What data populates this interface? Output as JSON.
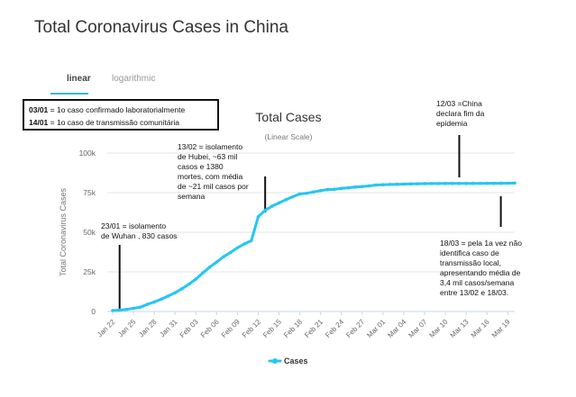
{
  "page_title": "Total Coronavirus Cases in China",
  "tabs": [
    {
      "label": "linear",
      "active": true
    },
    {
      "label": "logarithmic",
      "active": false
    }
  ],
  "info_box": {
    "line1_date": "03/01",
    "line1_text": " = 1o caso confirmado laboratorialmente",
    "line2_date": "14/01",
    "line2_text": " = 1o caso de transmissão comunitária"
  },
  "annotations": {
    "wuhan": "23/01 = isolamento\nde Wuhan , 830 casos",
    "hubei": "13/02 = isolamento\nde Hubei, ~63 mil\ncasos e 1380\nmortes, com média\nde ~21 mil casos por\nsemana",
    "end": "12/03 =China\ndeclara fim da\nepidemia",
    "local": "18/03 = pela 1a vez não\nidentifica caso de\ntransmissão local,\napresentando média de\n3,4 mil casos/semana\nentre 13/02 e 18/03."
  },
  "colors": {
    "series": "#26c6f2",
    "grid": "#e6e6e6",
    "axis_text": "#666666"
  },
  "chart_data": {
    "type": "line",
    "title": "Total Cases",
    "subtitle": "(Linear Scale)",
    "ylabel": "Total Coronavirus Cases",
    "xlabel": "",
    "ylim": [
      0,
      100000
    ],
    "yticks": [
      0,
      25000,
      50000,
      75000,
      100000
    ],
    "ytick_labels": [
      "0",
      "25k",
      "50k",
      "75k",
      "100k"
    ],
    "xtick_labels": [
      "Jan 22",
      "Jan 25",
      "Jan 28",
      "Jan 31",
      "Feb 03",
      "Feb 06",
      "Feb 09",
      "Feb 12",
      "Feb 15",
      "Feb 18",
      "Feb 21",
      "Feb 24",
      "Feb 27",
      "Mar 01",
      "Mar 04",
      "Mar 07",
      "Mar 10",
      "Mar 13",
      "Mar 16",
      "Mar 19"
    ],
    "legend_position": "bottom-center",
    "grid": true,
    "series": [
      {
        "name": "Cases",
        "x": [
          "Jan 22",
          "Jan 23",
          "Jan 24",
          "Jan 25",
          "Jan 26",
          "Jan 27",
          "Jan 28",
          "Jan 29",
          "Jan 30",
          "Jan 31",
          "Feb 01",
          "Feb 02",
          "Feb 03",
          "Feb 04",
          "Feb 05",
          "Feb 06",
          "Feb 07",
          "Feb 08",
          "Feb 09",
          "Feb 10",
          "Feb 11",
          "Feb 12",
          "Feb 13",
          "Feb 14",
          "Feb 15",
          "Feb 16",
          "Feb 17",
          "Feb 18",
          "Feb 19",
          "Feb 20",
          "Feb 21",
          "Feb 22",
          "Feb 23",
          "Feb 24",
          "Feb 25",
          "Feb 26",
          "Feb 27",
          "Feb 28",
          "Feb 29",
          "Mar 01",
          "Mar 02",
          "Mar 03",
          "Mar 04",
          "Mar 05",
          "Mar 06",
          "Mar 07",
          "Mar 08",
          "Mar 09",
          "Mar 10",
          "Mar 11",
          "Mar 12",
          "Mar 13",
          "Mar 14",
          "Mar 15",
          "Mar 16",
          "Mar 17",
          "Mar 18",
          "Mar 19",
          "Mar 20"
        ],
        "values": [
          571,
          830,
          1287,
          1975,
          2744,
          4515,
          5974,
          7711,
          9692,
          11791,
          14380,
          17205,
          20438,
          24324,
          28018,
          31161,
          34546,
          37198,
          40171,
          42638,
          44653,
          59804,
          63851,
          66492,
          68500,
          70548,
          72436,
          74185,
          74576,
          75465,
          76288,
          76936,
          77150,
          77658,
          78064,
          78497,
          78824,
          79251,
          79824,
          80026,
          80151,
          80270,
          80409,
          80552,
          80651,
          80695,
          80735,
          80754,
          80778,
          80793,
          80813,
          80824,
          80844,
          80860,
          80881,
          80894,
          80928,
          80967,
          81008
        ]
      }
    ]
  },
  "legend_label": "Cases"
}
